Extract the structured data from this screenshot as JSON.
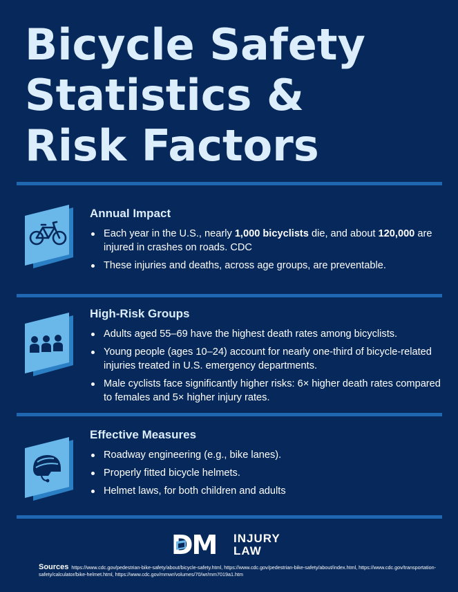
{
  "title": {
    "line1": "Bicycle Safety",
    "line2": "Statistics &",
    "line3": "Risk Factors"
  },
  "colors": {
    "background": "#06285a",
    "title": "#dcedfb",
    "divider": "#1f67b1",
    "icon_face": "#6ab7ea",
    "icon_side": "#2b7fc4",
    "icon_glyph": "#06285a"
  },
  "sections": [
    {
      "icon": "bicycle-icon",
      "heading": "Annual Impact",
      "bullets": [
        {
          "t1": "Each year in the U.S., nearly ",
          "b1": "1,000 bicyclists",
          "t2": " die, and about ",
          "b2": "120,000",
          "t3": " are injured in crashes on roads. CDC"
        },
        {
          "text": "These injuries and deaths, across age groups, are preventable."
        }
      ]
    },
    {
      "icon": "people-group-icon",
      "heading": "High-Risk Groups",
      "bullets": [
        {
          "text": "Adults aged 55–69 have the highest death rates among bicyclists."
        },
        {
          "text": "Young people (ages 10–24) account for nearly one-third of bicycle-related injuries treated in U.S. emergency departments."
        },
        {
          "text": "Male cyclists face significantly higher risks: 6× higher death rates compared to females and 5× higher injury rates."
        }
      ]
    },
    {
      "icon": "helmet-icon",
      "heading": "Effective Measures",
      "bullets": [
        {
          "text": "Roadway engineering (e.g., bike lanes)."
        },
        {
          "text": "Properly fitted bicycle helmets."
        },
        {
          "text": "Helmet laws, for both children and adults"
        }
      ]
    }
  ],
  "logo": {
    "mark": "DM",
    "word1": "INJURY",
    "word2": "LAW"
  },
  "sources": {
    "label": "Sources",
    "text": "https://www.cdc.gov/pedestrian-bike-safety/about/bicycle-safety.html, https://www.cdc.gov/pedestrian-bike-safety/about/index.html, https://www.cdc.gov/transportation-safety/calculator/bike-helmet.html, https://www.cdc.gov/mmwr/volumes/70/wr/mm7019a1.htm"
  }
}
